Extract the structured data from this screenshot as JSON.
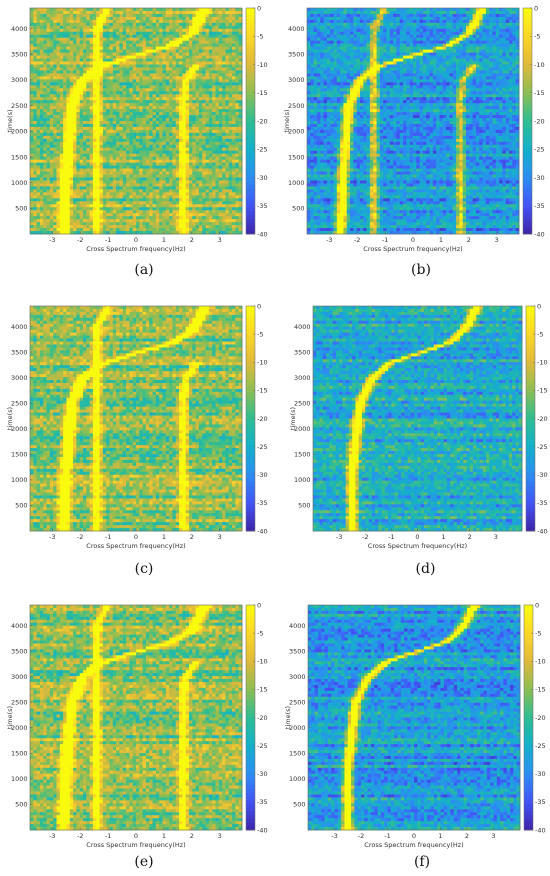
{
  "chart_data": [
    {
      "type": "heatmap",
      "panel_label": "(a)",
      "xlabel": "Cross Spectrum frequency(Hz)",
      "ylabel": "time(s)",
      "xlim": [
        -3.8,
        3.8
      ],
      "ylim": [
        0,
        4400
      ],
      "xticks": [
        -3,
        -2,
        -1,
        0,
        1,
        2,
        3
      ],
      "yticks": [
        500,
        1000,
        1500,
        2000,
        2500,
        3000,
        3500,
        4000
      ],
      "colorbar": {
        "ticks": [
          0,
          -5,
          -10,
          -15,
          -20,
          -25,
          -30,
          -35,
          -40
        ],
        "range": [
          -40,
          0
        ]
      },
      "noise_level": 0.62,
      "ridges": [
        {
          "name": "",
          "points": [
            [
              -2.6,
              0
            ],
            [
              -2.5,
              1200
            ],
            [
              -2.3,
              2500
            ],
            [
              -1.9,
              3000
            ],
            [
              -1.3,
              3250
            ],
            [
              0,
              3480
            ],
            [
              1.2,
              3650
            ],
            [
              2.0,
              3900
            ],
            [
              2.5,
              4400
            ]
          ]
        },
        {
          "name": "",
          "points": [
            [
              1.7,
              2600
            ],
            [
              1.8,
              3000
            ],
            [
              2.2,
              3300
            ]
          ]
        },
        {
          "name": "",
          "points": [
            [
              -1.4,
              4000
            ],
            [
              -1.0,
              4400
            ]
          ]
        }
      ]
    },
    {
      "type": "heatmap",
      "panel_label": "(b)",
      "xlabel": "Cross Spectrum frequency(Hz)",
      "ylabel": "time(s)",
      "xlim": [
        -3.8,
        3.8
      ],
      "ylim": [
        0,
        4400
      ],
      "xticks": [
        -3,
        -2,
        -1,
        0,
        1,
        2,
        3
      ],
      "yticks": [
        500,
        1000,
        1500,
        2000,
        2500,
        3000,
        3500,
        4000
      ],
      "colorbar": {
        "ticks": [
          0,
          -5,
          -10,
          -15,
          -20,
          -25,
          -30,
          -35,
          -40
        ],
        "range": [
          -40,
          0
        ]
      },
      "noise_level": 0.3,
      "ridges": [
        {
          "name": "",
          "points": [
            [
              -2.6,
              0
            ],
            [
              -2.5,
              1200
            ],
            [
              -2.3,
              2500
            ],
            [
              -1.9,
              3000
            ],
            [
              -1.3,
              3250
            ],
            [
              0,
              3480
            ],
            [
              1.2,
              3650
            ],
            [
              2.0,
              3900
            ],
            [
              2.5,
              4400
            ]
          ]
        },
        {
          "name": "",
          "points": [
            [
              1.7,
              2600
            ],
            [
              1.8,
              3000
            ],
            [
              2.2,
              3300
            ]
          ]
        },
        {
          "name": "",
          "points": [
            [
              -1.4,
              4000
            ],
            [
              -1.0,
              4400
            ]
          ]
        }
      ]
    },
    {
      "type": "heatmap",
      "panel_label": "(c)",
      "xlabel": "Cross Spectrum frequency(Hz)",
      "ylabel": "time(s)",
      "xlim": [
        -3.8,
        3.8
      ],
      "ylim": [
        0,
        4400
      ],
      "xticks": [
        -3,
        -2,
        -1,
        0,
        1,
        2,
        3
      ],
      "yticks": [
        500,
        1000,
        1500,
        2000,
        2500,
        3000,
        3500,
        4000
      ],
      "colorbar": {
        "ticks": [
          0,
          -5,
          -10,
          -15,
          -20,
          -25,
          -30,
          -35,
          -40
        ],
        "range": [
          -40,
          0
        ]
      },
      "noise_level": 0.62,
      "ridges": [
        {
          "name": "",
          "points": [
            [
              -2.6,
              0
            ],
            [
              -2.5,
              1200
            ],
            [
              -2.3,
              2500
            ],
            [
              -1.9,
              3000
            ],
            [
              -1.3,
              3250
            ],
            [
              0,
              3480
            ],
            [
              1.2,
              3650
            ],
            [
              2.0,
              3900
            ],
            [
              2.5,
              4400
            ]
          ]
        },
        {
          "name": "",
          "points": [
            [
              1.7,
              2600
            ],
            [
              1.8,
              3000
            ],
            [
              2.2,
              3300
            ]
          ]
        },
        {
          "name": "",
          "points": [
            [
              -1.4,
              4000
            ],
            [
              -1.0,
              4400
            ]
          ]
        }
      ]
    },
    {
      "type": "heatmap",
      "panel_label": "(d)",
      "xlabel": "Cross Spectrum frequency(Hz)",
      "ylabel": "time(s)",
      "xlim": [
        -4.0,
        4.0
      ],
      "ylim": [
        0,
        4400
      ],
      "xticks": [
        -3,
        -2,
        -1,
        0,
        1,
        2,
        3
      ],
      "yticks": [
        500,
        1000,
        1500,
        2000,
        2500,
        3000,
        3500,
        4000
      ],
      "colorbar": {
        "ticks": [
          0,
          -5,
          -10,
          -15,
          -20,
          -25,
          -30,
          -35,
          -40
        ],
        "range": [
          -40,
          0
        ]
      },
      "noise_level": 0.38,
      "ridges": [
        {
          "name": "",
          "points": [
            [
              -2.5,
              0
            ],
            [
              -2.5,
              1200
            ],
            [
              -2.2,
              2500
            ],
            [
              -1.7,
              3000
            ],
            [
              -1.0,
              3300
            ],
            [
              0.5,
              3550
            ],
            [
              1.3,
              3700
            ],
            [
              1.9,
              4000
            ],
            [
              2.3,
              4400
            ]
          ]
        }
      ]
    },
    {
      "type": "heatmap",
      "panel_label": "(e)",
      "xlabel": "Cross Spectrum frequency(Hz)",
      "ylabel": "time(s)",
      "xlim": [
        -3.8,
        3.8
      ],
      "ylim": [
        0,
        4400
      ],
      "xticks": [
        -3,
        -2,
        -1,
        0,
        1,
        2,
        3
      ],
      "yticks": [
        500,
        1000,
        1500,
        2000,
        2500,
        3000,
        3500,
        4000
      ],
      "colorbar": {
        "ticks": [
          0,
          -5,
          -10,
          -15,
          -20,
          -25,
          -30,
          -35,
          -40
        ],
        "range": [
          -40,
          0
        ]
      },
      "noise_level": 0.62,
      "ridges": [
        {
          "name": "",
          "points": [
            [
              -2.6,
              0
            ],
            [
              -2.5,
              1200
            ],
            [
              -2.3,
              2500
            ],
            [
              -1.9,
              3000
            ],
            [
              -1.3,
              3250
            ],
            [
              0,
              3480
            ],
            [
              1.2,
              3650
            ],
            [
              2.0,
              3900
            ],
            [
              2.5,
              4400
            ]
          ]
        },
        {
          "name": "",
          "points": [
            [
              1.7,
              2600
            ],
            [
              1.8,
              3000
            ],
            [
              2.2,
              3300
            ]
          ]
        },
        {
          "name": "",
          "points": [
            [
              -1.4,
              4000
            ],
            [
              -1.0,
              4400
            ]
          ]
        }
      ]
    },
    {
      "type": "heatmap",
      "panel_label": "(f)",
      "xlabel": "Cross Spectrum frequency(Hz)",
      "ylabel": "time(s)",
      "xlim": [
        -4.0,
        4.0
      ],
      "ylim": [
        0,
        4400
      ],
      "xticks": [
        -3,
        -2,
        -1,
        0,
        1,
        2,
        3
      ],
      "yticks": [
        500,
        1000,
        1500,
        2000,
        2500,
        3000,
        3500,
        4000
      ],
      "colorbar": {
        "ticks": [
          0,
          -5,
          -10,
          -15,
          -20,
          -25,
          -30,
          -35,
          -40
        ],
        "range": [
          -40,
          0
        ]
      },
      "noise_level": 0.32,
      "ridges": [
        {
          "name": "",
          "points": [
            [
              -2.5,
              0
            ],
            [
              -2.5,
              1200
            ],
            [
              -2.2,
              2500
            ],
            [
              -1.7,
              3000
            ],
            [
              -1.0,
              3300
            ],
            [
              0.5,
              3550
            ],
            [
              1.3,
              3700
            ],
            [
              1.9,
              4000
            ],
            [
              2.3,
              4400
            ]
          ]
        }
      ]
    }
  ],
  "colors": {
    "colormap": [
      "#3e26a8",
      "#4353f6",
      "#2c8ef2",
      "#14b0cb",
      "#2ebe92",
      "#8cbe53",
      "#e0b93a",
      "#fbd728",
      "#f9fb0e"
    ],
    "axis": "#666666",
    "text": "#333333"
  }
}
